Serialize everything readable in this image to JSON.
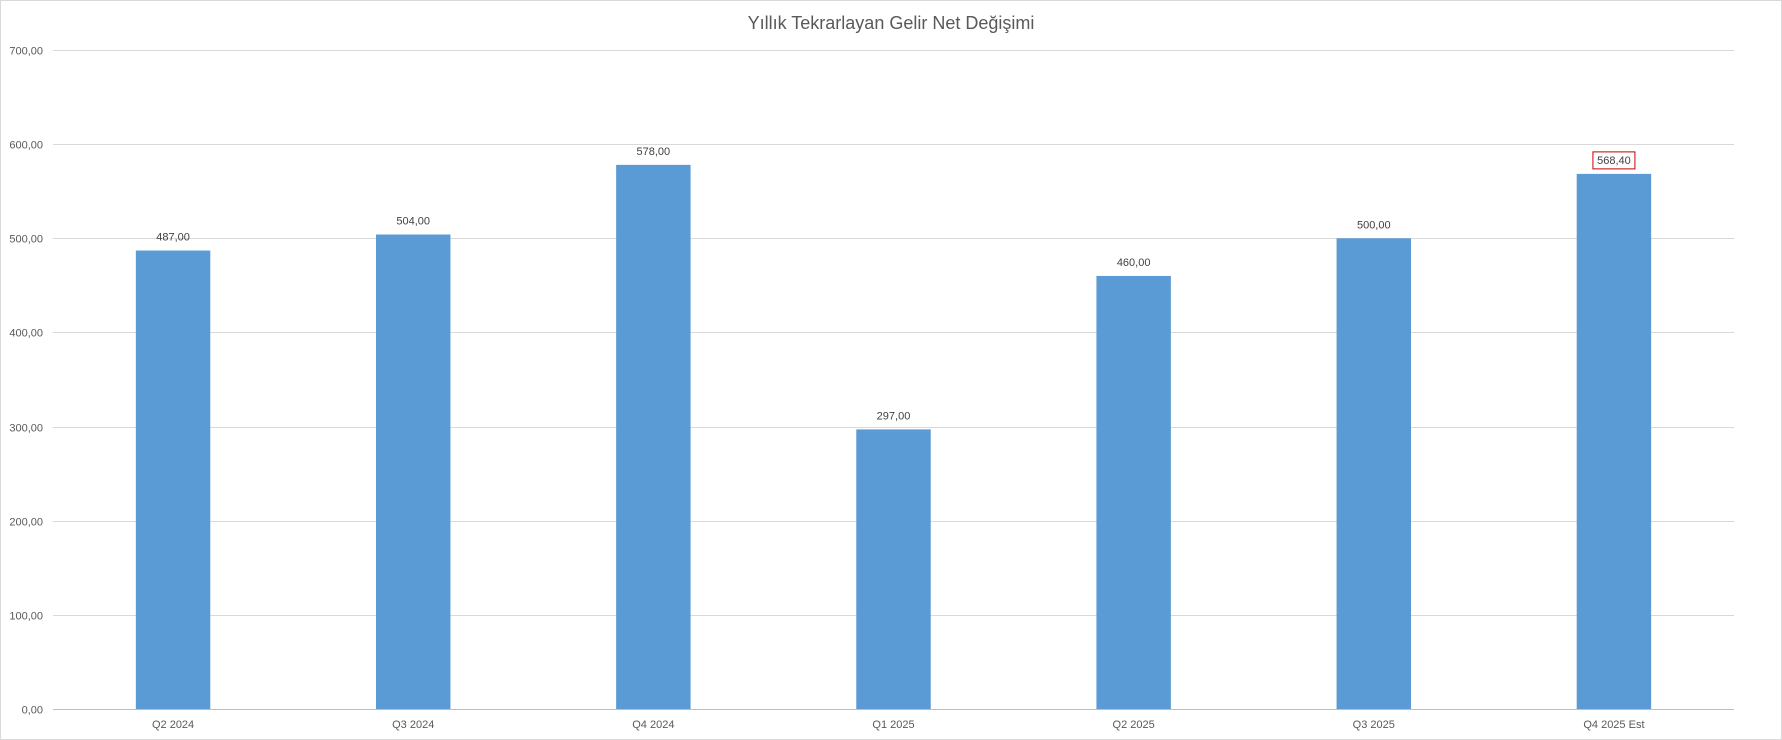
{
  "chart_data": {
    "type": "bar",
    "title": "Yıllık Tekrarlayan Gelir Net Değişimi",
    "xlabel": "",
    "ylabel": "",
    "categories": [
      "Q2 2024",
      "Q3 2024",
      "Q4 2024",
      "Q1 2025",
      "Q2 2025",
      "Q3 2025",
      "Q4 2025 Est"
    ],
    "values": [
      487.0,
      504.0,
      578.0,
      297.0,
      460.0,
      500.0,
      568.4
    ],
    "value_labels": [
      "487,00",
      "504,00",
      "578,00",
      "297,00",
      "460,00",
      "500,00",
      "568,40"
    ],
    "highlighted_label_index": 6,
    "ylim": [
      0,
      700
    ],
    "yticks": [
      0,
      100,
      200,
      300,
      400,
      500,
      600,
      700
    ],
    "ytick_labels": [
      "0,00",
      "100,00",
      "200,00",
      "300,00",
      "400,00",
      "500,00",
      "600,00",
      "700,00"
    ],
    "grid": true,
    "legend": "none",
    "bar_color": "#5b9bd5",
    "highlight_border_color": "#c00000"
  }
}
